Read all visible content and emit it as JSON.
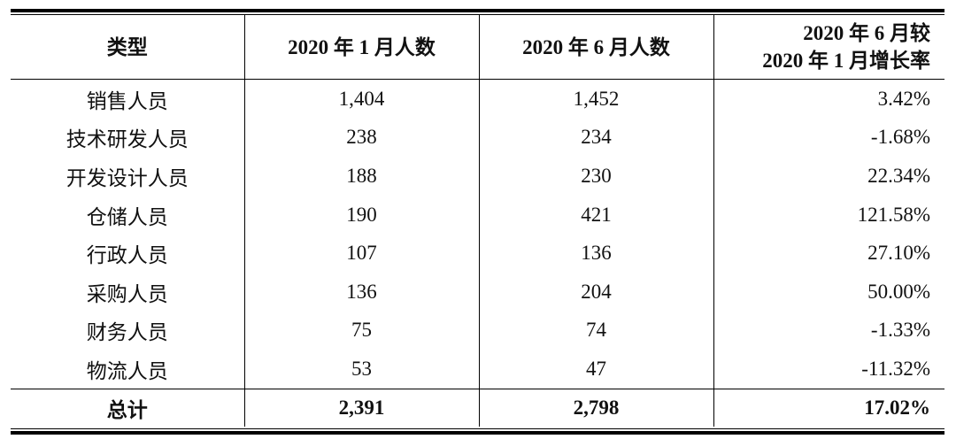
{
  "table": {
    "header": [
      "类型",
      "2020 年 1 月人数",
      "2020 年 6 月人数",
      [
        "2020 年 6 月较",
        "2020 年 1 月增长率"
      ]
    ],
    "rows": [
      [
        "销售人员",
        "1,404",
        "1,452",
        "3.42%"
      ],
      [
        "技术研发人员",
        "238",
        "234",
        "-1.68%"
      ],
      [
        "开发设计人员",
        "188",
        "230",
        "22.34%"
      ],
      [
        "仓储人员",
        "190",
        "421",
        "121.58%"
      ],
      [
        "行政人员",
        "107",
        "136",
        "27.10%"
      ],
      [
        "采购人员",
        "136",
        "204",
        "50.00%"
      ],
      [
        "财务人员",
        "75",
        "74",
        "-1.33%"
      ],
      [
        "物流人员",
        "53",
        "47",
        "-11.32%"
      ]
    ],
    "total": [
      "总计",
      "2,391",
      "2,798",
      "17.02%"
    ]
  }
}
